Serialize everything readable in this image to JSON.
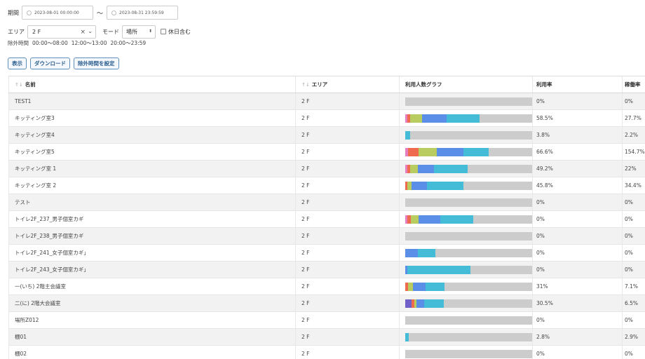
{
  "filters": {
    "period_label": "期間",
    "start": "2023-08-01 00:00:00",
    "tilde": "～",
    "end": "2023-08-31 23:59:59",
    "area_label": "エリア",
    "area_value": "2 F",
    "mode_label": "モード",
    "mode_value": "場所",
    "holiday_label": "休日含む",
    "excluded_label": "除外時間",
    "excluded_times": [
      "00:00～08:00",
      "12:00～13:00",
      "20:00～23:59"
    ]
  },
  "buttons": {
    "show": "表示",
    "download": "ダウンロード",
    "set_excluded": "除外時間を設定"
  },
  "table": {
    "headers": {
      "name": "名前",
      "area": "エリア",
      "graph": "利用人数グラフ",
      "rate": "利用率",
      "work": "稼働率"
    },
    "colors": {
      "track": "#cccccc",
      "pink": "#e57fc0",
      "red": "#ef6b50",
      "olive": "#b9cc60",
      "blue": "#5b8ee6",
      "cyan": "#44bcd8",
      "purple": "#7060c8"
    },
    "rows": [
      {
        "name": "TEST1",
        "area": "2 F",
        "rate": "0%",
        "work": "0%",
        "segments": []
      },
      {
        "name": "キッティング室3",
        "area": "2 F",
        "rate": "58.5%",
        "work": "27.7%",
        "segments": [
          {
            "c": "pink",
            "w": 0.015
          },
          {
            "c": "red",
            "w": 0.025
          },
          {
            "c": "olive",
            "w": 0.09
          },
          {
            "c": "blue",
            "w": 0.195
          },
          {
            "c": "cyan",
            "w": 0.26
          }
        ]
      },
      {
        "name": "キッティング室4",
        "area": "2 F",
        "rate": "3.8%",
        "work": "2.2%",
        "segments": [
          {
            "c": "cyan",
            "w": 0.038
          }
        ]
      },
      {
        "name": "キッティング室5",
        "area": "2 F",
        "rate": "66.6%",
        "work": "154.7%",
        "segments": [
          {
            "c": "pink",
            "w": 0.02
          },
          {
            "c": "red",
            "w": 0.085
          },
          {
            "c": "olive",
            "w": 0.145
          },
          {
            "c": "blue",
            "w": 0.21
          },
          {
            "c": "cyan",
            "w": 0.2
          }
        ]
      },
      {
        "name": "キッティング室 1",
        "area": "2 F",
        "rate": "49.2%",
        "work": "22%",
        "segments": [
          {
            "c": "pink",
            "w": 0.015
          },
          {
            "c": "red",
            "w": 0.022
          },
          {
            "c": "olive",
            "w": 0.06
          },
          {
            "c": "blue",
            "w": 0.13
          },
          {
            "c": "cyan",
            "w": 0.265
          }
        ]
      },
      {
        "name": "キッティング室 2",
        "area": "2 F",
        "rate": "45.8%",
        "work": "34.4%",
        "segments": [
          {
            "c": "red",
            "w": 0.015
          },
          {
            "c": "olive",
            "w": 0.035
          },
          {
            "c": "blue",
            "w": 0.12
          },
          {
            "c": "cyan",
            "w": 0.288
          }
        ]
      },
      {
        "name": "テスト",
        "area": "2 F",
        "rate": "0%",
        "work": "0%",
        "segments": []
      },
      {
        "name": "トイレ2F_237_男子個室カギ",
        "area": "2 F",
        "rate": "0%",
        "work": "0%",
        "segments": [
          {
            "c": "pink",
            "w": 0.015
          },
          {
            "c": "red",
            "w": 0.03
          },
          {
            "c": "olive",
            "w": 0.06
          },
          {
            "c": "blue",
            "w": 0.17
          },
          {
            "c": "cyan",
            "w": 0.26
          }
        ]
      },
      {
        "name": "トイレ2F_238_男子個室カギ",
        "area": "2 F",
        "rate": "0%",
        "work": "0%",
        "segments": []
      },
      {
        "name": "トイレ2F_241_女子個室カギ」",
        "area": "2 F",
        "rate": "0%",
        "work": "0%",
        "segments": [
          {
            "c": "blue",
            "w": 0.1
          },
          {
            "c": "cyan",
            "w": 0.135
          }
        ]
      },
      {
        "name": "トイレ2F_243_女子個室カギ」",
        "area": "2 F",
        "rate": "0%",
        "work": "0%",
        "segments": [
          {
            "c": "blue",
            "w": 0.015
          },
          {
            "c": "cyan",
            "w": 0.5
          }
        ]
      },
      {
        "name": "一(いち) 2階主会議室",
        "area": "2 F",
        "rate": "31%",
        "work": "7.1%",
        "segments": [
          {
            "c": "red",
            "w": 0.02
          },
          {
            "c": "olive",
            "w": 0.04
          },
          {
            "c": "blue",
            "w": 0.1
          },
          {
            "c": "cyan",
            "w": 0.15
          }
        ]
      },
      {
        "name": "二(に) 2階大会議室",
        "area": "2 F",
        "rate": "30.5%",
        "work": "6.5%",
        "segments": [
          {
            "c": "purple",
            "w": 0.05
          },
          {
            "c": "red",
            "w": 0.02
          },
          {
            "c": "olive",
            "w": 0.02
          },
          {
            "c": "blue",
            "w": 0.06
          },
          {
            "c": "cyan",
            "w": 0.155
          }
        ]
      },
      {
        "name": "場所Z012",
        "area": "2 F",
        "rate": "0%",
        "work": "0%",
        "segments": []
      },
      {
        "name": "棚01",
        "area": "2 F",
        "rate": "2.8%",
        "work": "2.9%",
        "segments": [
          {
            "c": "cyan",
            "w": 0.028
          }
        ]
      },
      {
        "name": "棚02",
        "area": "2 F",
        "rate": "0%",
        "work": "0%",
        "segments": []
      }
    ]
  }
}
